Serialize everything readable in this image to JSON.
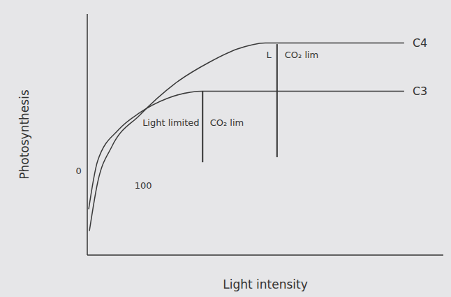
{
  "chart_data": {
    "type": "line",
    "x_label": "Light intensity",
    "y_label": "Photosynthesis",
    "xlim": [
      0,
      100
    ],
    "ylim": [
      0,
      100
    ],
    "tick_labels": false,
    "grid": false,
    "series": [
      {
        "name": "C4",
        "color": "#3a3a3a",
        "x": [
          0.6,
          2.9,
          6.9,
          14.7,
          24.5,
          34.3,
          42.2,
          50,
          89
        ],
        "values": [
          10,
          30,
          45,
          58,
          71,
          80,
          85.5,
          88,
          88
        ]
      },
      {
        "name": "C3",
        "color": "#3a3a3a",
        "x": [
          0.4,
          2.9,
          8.8,
          14.7,
          22.5,
          32.4,
          89
        ],
        "values": [
          19,
          39,
          52,
          59,
          65,
          68,
          68
        ]
      }
    ],
    "limits": [
      {
        "x": 32.4,
        "y": [
          38.5,
          68
        ]
      },
      {
        "x": 53.3,
        "y": [
          40.6,
          87.5
        ]
      }
    ],
    "annotations": [
      {
        "text": "Light limited",
        "x": 23.5,
        "y": 55
      },
      {
        "text": "CO₂ lim",
        "x": 39.2,
        "y": 55
      },
      {
        "text": "L",
        "x": 51,
        "y": 83
      },
      {
        "text": "CO₂ lim",
        "x": 60.2,
        "y": 83
      },
      {
        "text": "0",
        "x": -2.4,
        "y": 35
      },
      {
        "text": "100",
        "x": 15.7,
        "y": 29
      }
    ]
  }
}
